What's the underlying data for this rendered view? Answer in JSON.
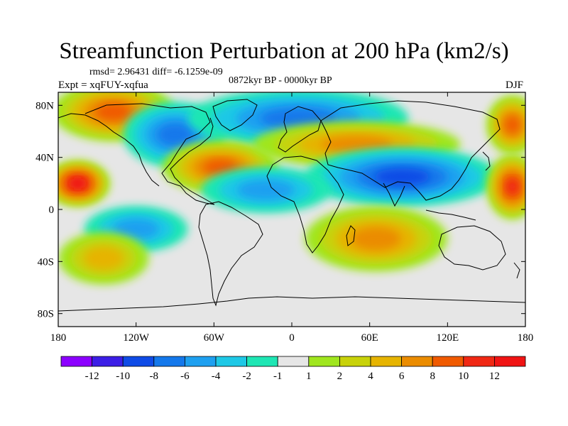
{
  "title": "Streamfunction Perturbation at 200 hPa (km2/s)",
  "rmsd_line": "rmsd= 2.96431 diff= -6.1259e-09",
  "period_line": "0872kyr BP - 0000kyr BP",
  "expt_line": "Expt = xqFUY-xqfua",
  "season": "DJF",
  "map": {
    "lat_labels": [
      "80N",
      "40N",
      "0",
      "40S",
      "80S"
    ],
    "lat_values": [
      80,
      40,
      0,
      -40,
      -80
    ],
    "lon_labels": [
      "180",
      "120W",
      "60W",
      "0",
      "60E",
      "120E",
      "180"
    ],
    "lon_values": [
      -180,
      -120,
      -60,
      0,
      60,
      120,
      180
    ],
    "lat_range": [
      -90,
      90
    ],
    "lon_range": [
      -180,
      180
    ],
    "background_color": "#e6e6e6"
  },
  "fields": [
    {
      "name": "arctic-atlantic-positive",
      "level": 8,
      "lon_range": [
        -175,
        -100
      ],
      "lat_range": [
        60,
        90
      ]
    },
    {
      "name": "north-america-negative",
      "level": -6,
      "lon_range": [
        -120,
        -60
      ],
      "lat_range": [
        40,
        75
      ]
    },
    {
      "name": "north-atlantic-negative",
      "level": -6,
      "lon_range": [
        -70,
        80
      ],
      "lat_range": [
        55,
        85
      ]
    },
    {
      "name": "north-atlantic-positive",
      "level": 8,
      "lon_range": [
        -90,
        -20
      ],
      "lat_range": [
        20,
        45
      ]
    },
    {
      "name": "eurasia-positive",
      "level": 6,
      "lon_range": [
        -20,
        120
      ],
      "lat_range": [
        40,
        60
      ]
    },
    {
      "name": "asia-negative",
      "level": -8,
      "lon_range": [
        20,
        150
      ],
      "lat_range": [
        10,
        40
      ]
    },
    {
      "name": "pacific-positive",
      "level": 12,
      "lon_range": [
        -180,
        -150
      ],
      "lat_range": [
        10,
        30
      ]
    },
    {
      "name": "tropical-atlantic-negative",
      "level": -4,
      "lon_range": [
        -60,
        20
      ],
      "lat_range": [
        5,
        25
      ]
    },
    {
      "name": "east-pacific-negative",
      "level": -4,
      "lon_range": [
        -150,
        -90
      ],
      "lat_range": [
        -25,
        -5
      ]
    },
    {
      "name": "indian-ocean-positive",
      "level": 6,
      "lon_range": [
        20,
        110
      ],
      "lat_range": [
        -40,
        -5
      ]
    },
    {
      "name": "south-pacific-positive",
      "level": 4,
      "lon_range": [
        -170,
        -120
      ],
      "lat_range": [
        -50,
        -25
      ]
    },
    {
      "name": "north-pacific-east-positive",
      "level": 8,
      "lon_range": [
        160,
        180
      ],
      "lat_range": [
        50,
        80
      ]
    },
    {
      "name": "east-pacific-tropical-positive",
      "level": 10,
      "lon_range": [
        160,
        180
      ],
      "lat_range": [
        0,
        35
      ]
    }
  ],
  "colorbar": {
    "labels": [
      "-12",
      "-10",
      "-8",
      "-6",
      "-4",
      "-2",
      "-1",
      "1",
      "2",
      "4",
      "6",
      "8",
      "10",
      "12"
    ],
    "colors": [
      "#8c00ff",
      "#3c1ee6",
      "#0f4be6",
      "#1478eb",
      "#1ea0f0",
      "#1ec8e6",
      "#1ee6b4",
      "#e6e6e6",
      "#a0e61e",
      "#c8d20a",
      "#e6b400",
      "#eb8c00",
      "#f05a00",
      "#f02814",
      "#f01414"
    ]
  }
}
